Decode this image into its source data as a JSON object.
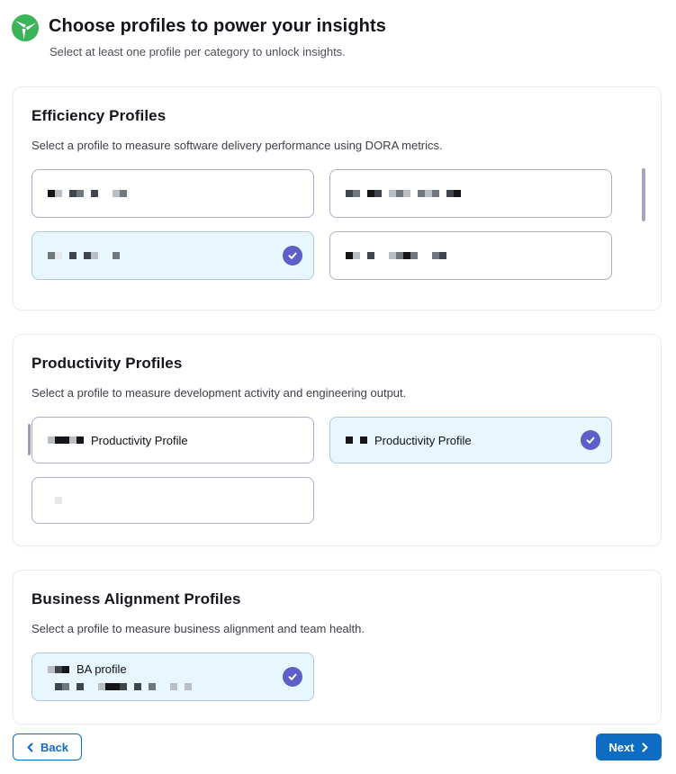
{
  "header": {
    "title": "Choose profiles to power your insights",
    "subtitle": "Select at least one profile per category to unlock insights."
  },
  "palette": {
    "accent_blue": "#0e6dc2",
    "check_indigo": "#5b5fc7",
    "selected_card_bg": "#e8f6fd",
    "selected_card_border": "#a9c9e4",
    "card_border": "#aeaecb",
    "logo_green": "#3cb45a"
  },
  "mosaic_palette": {
    "D": "#161618",
    "d": "#3f454e",
    "g": "#71777f",
    "l": "#b9bec4",
    "w": "#e6e9ec"
  },
  "sections": [
    {
      "title": "Efficiency Profiles",
      "description": "Select a profile to measure software delivery performance using DORA metrics.",
      "cards": [
        {
          "selected": false,
          "label": "",
          "mosaic": "Dl.dg.d..lg"
        },
        {
          "selected": false,
          "label": "",
          "mosaic": "dg.Dd.lgl.glg.dD"
        },
        {
          "selected": true,
          "label": "",
          "mosaic": "gw.d.dl..g"
        },
        {
          "selected": false,
          "label": "",
          "mosaic": "Dl.d..lgDg..gd"
        }
      ]
    },
    {
      "title": "Productivity Profiles",
      "description": "Select a profile to measure development activity and engineering output.",
      "cards": [
        {
          "selected": false,
          "label": "Productivity Profile",
          "mosaic": "lDDlD"
        },
        {
          "selected": true,
          "label": "Productivity Profile",
          "mosaic": "D.D"
        },
        {
          "selected": false,
          "label": "",
          "mosaic": ".w"
        }
      ]
    },
    {
      "title": "Business Alignment Profiles",
      "description": "Select a profile to measure business alignment and team health.",
      "cards": [
        {
          "selected": true,
          "label": "BA profile",
          "mosaic": "ldD",
          "mosaic2": ".dg.d..lDDd.d.g..l.l"
        }
      ]
    }
  ],
  "footer": {
    "back_label": "Back",
    "next_label": "Next"
  }
}
